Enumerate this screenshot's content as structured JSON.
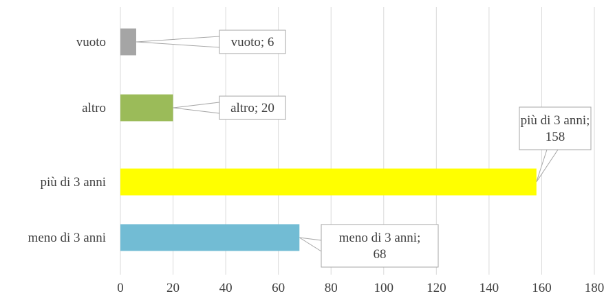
{
  "chart_data": {
    "type": "bar",
    "orientation": "horizontal",
    "title": "",
    "xlabel": "",
    "ylabel": "",
    "categories": [
      "vuoto",
      "altro",
      "più di 3 anni",
      "meno di 3 anni"
    ],
    "values": [
      6,
      20,
      158,
      68
    ],
    "colors": [
      "#a5a5a5",
      "#9bbb59",
      "#ffff00",
      "#72bcd4"
    ],
    "data_labels": [
      [
        "vuoto; 6"
      ],
      [
        "altro; 20"
      ],
      [
        "più di 3 anni;",
        "158"
      ],
      [
        "meno di 3 anni;",
        "68"
      ]
    ],
    "xlim": [
      0,
      180
    ],
    "x_ticks": [
      0,
      20,
      40,
      60,
      80,
      100,
      120,
      140,
      160,
      180
    ],
    "grid": "vertical",
    "legend": "none"
  }
}
